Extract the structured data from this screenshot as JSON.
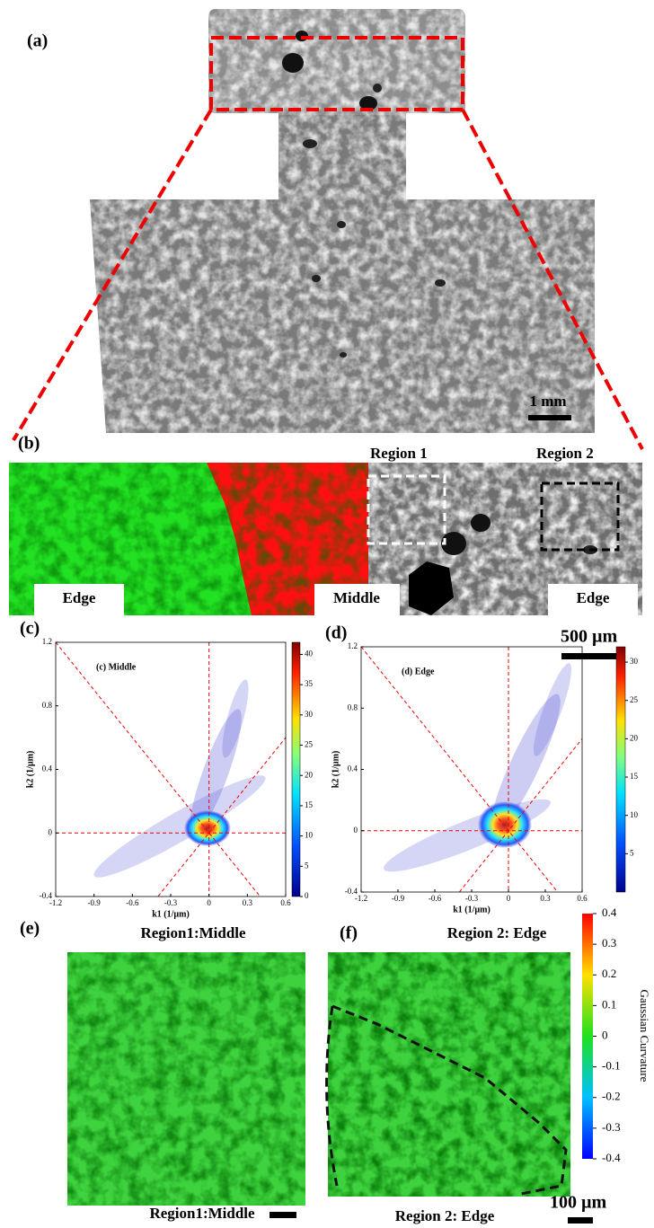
{
  "figure": {
    "panel_a": {
      "label": "(a)",
      "scale_bar": "1 mm"
    },
    "panel_b": {
      "label": "(b)",
      "regions": [
        "Region 1",
        "Region 2"
      ],
      "zones": [
        "Edge",
        "Middle",
        "Edge"
      ],
      "scale_bar": "500 µm"
    },
    "panel_e": {
      "label": "(e)",
      "title": "Region1:Middle",
      "caption": "Region1:Middle"
    },
    "panel_f": {
      "label": "(f)",
      "title": "Region 2: Edge",
      "caption": "Region 2: Edge",
      "scale_bar": "100 µm",
      "colorbar": {
        "label": "Gaussian Curvature",
        "lim": [
          -0.4,
          0.4
        ],
        "ticks": [
          0.4,
          0.3,
          0.2,
          0.1,
          0,
          -0.1,
          -0.2,
          -0.3,
          -0.4
        ]
      }
    }
  },
  "chart_data": [
    {
      "type": "scatter",
      "panel_label": "(c)",
      "title": "(c) Middle",
      "xlabel": "k1 (1/µm)",
      "ylabel": "k2 (1/µm)",
      "xlim": [
        -1.2,
        0.6
      ],
      "ylim": [
        -0.4,
        1.2
      ],
      "xticks": [
        -1.2,
        -0.9,
        -0.6,
        -0.3,
        0,
        0.3,
        0.6
      ],
      "yticks": [
        -0.4,
        0,
        0.4,
        0.8,
        1.2
      ],
      "colorbar": {
        "lim": [
          0,
          42
        ],
        "ticks": [
          0,
          5,
          10,
          15,
          20,
          25,
          30,
          35,
          40
        ]
      }
    },
    {
      "type": "scatter",
      "panel_label": "(d)",
      "title": "(d) Edge",
      "xlabel": "k1 (1/µm)",
      "ylabel": "k2 (1/µm)",
      "xlim": [
        -1.2,
        0.6
      ],
      "ylim": [
        -0.4,
        1.2
      ],
      "xticks": [
        -1.2,
        -0.9,
        -0.6,
        -0.3,
        0,
        0.3,
        0.6
      ],
      "yticks": [
        -0.4,
        0,
        0.4,
        0.8,
        1.2
      ],
      "colorbar": {
        "lim": [
          0,
          32
        ],
        "ticks": [
          5,
          10,
          15,
          20,
          25,
          30
        ]
      }
    }
  ]
}
